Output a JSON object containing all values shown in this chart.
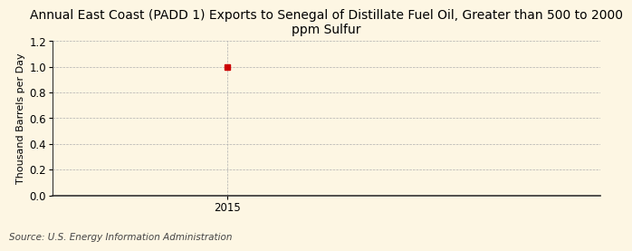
{
  "title": "Annual East Coast (PADD 1) Exports to Senegal of Distillate Fuel Oil, Greater than 500 to 2000\nppm Sulfur",
  "ylabel": "Thousand Barrels per Day",
  "source": "Source: U.S. Energy Information Administration",
  "x_data": [
    2015
  ],
  "y_data": [
    1.0
  ],
  "data_color": "#cc0000",
  "background_color": "#fdf6e3",
  "xlim": [
    2014.3,
    2016.5
  ],
  "ylim": [
    0.0,
    1.2
  ],
  "yticks": [
    0.0,
    0.2,
    0.4,
    0.6,
    0.8,
    1.0,
    1.2
  ],
  "xticks": [
    2015
  ],
  "grid_color": "#b0b0b0",
  "title_fontsize": 10,
  "ylabel_fontsize": 8,
  "source_fontsize": 7.5,
  "tick_fontsize": 8.5
}
